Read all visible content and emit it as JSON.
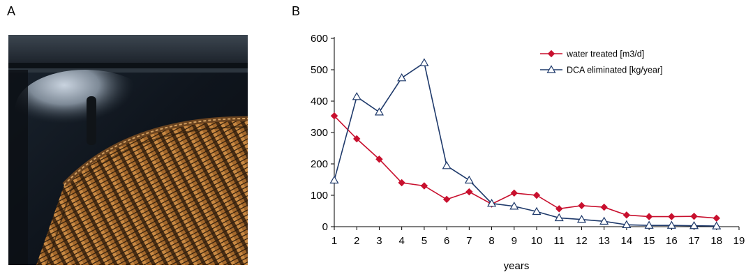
{
  "panels": {
    "a_label": "A",
    "b_label": "B"
  },
  "photo": {
    "icon": "heat-exchanger-photo"
  },
  "chart_data": {
    "type": "line",
    "title": "",
    "xlabel": "years",
    "ylabel": "",
    "xlim": [
      1,
      19
    ],
    "ylim": [
      0,
      600
    ],
    "x_ticks": [
      1,
      2,
      3,
      4,
      5,
      6,
      7,
      8,
      9,
      10,
      11,
      12,
      13,
      14,
      15,
      16,
      17,
      18,
      19
    ],
    "y_ticks": [
      0,
      100,
      200,
      300,
      400,
      500,
      600
    ],
    "grid": false,
    "legend_position": "top-right",
    "series": [
      {
        "name": "water treated  [m3/d]",
        "color": "#C8102E",
        "marker": "diamond",
        "x": [
          1,
          2,
          3,
          4,
          5,
          6,
          7,
          8,
          9,
          10,
          11,
          12,
          13,
          14,
          15,
          16,
          17,
          18
        ],
        "values": [
          353,
          280,
          215,
          140,
          130,
          87,
          111,
          72,
          107,
          100,
          57,
          67,
          62,
          37,
          32,
          32,
          33,
          27
        ]
      },
      {
        "name": "DCA eliminated [kg/year]",
        "color": "#1F3A6B",
        "marker": "triangle",
        "x": [
          1,
          2,
          3,
          4,
          5,
          6,
          7,
          8,
          9,
          10,
          11,
          12,
          13,
          14,
          15,
          16,
          17,
          18
        ],
        "values": [
          148,
          414,
          365,
          474,
          522,
          194,
          148,
          74,
          65,
          48,
          28,
          23,
          17,
          6,
          4,
          4,
          3,
          2
        ]
      }
    ]
  }
}
